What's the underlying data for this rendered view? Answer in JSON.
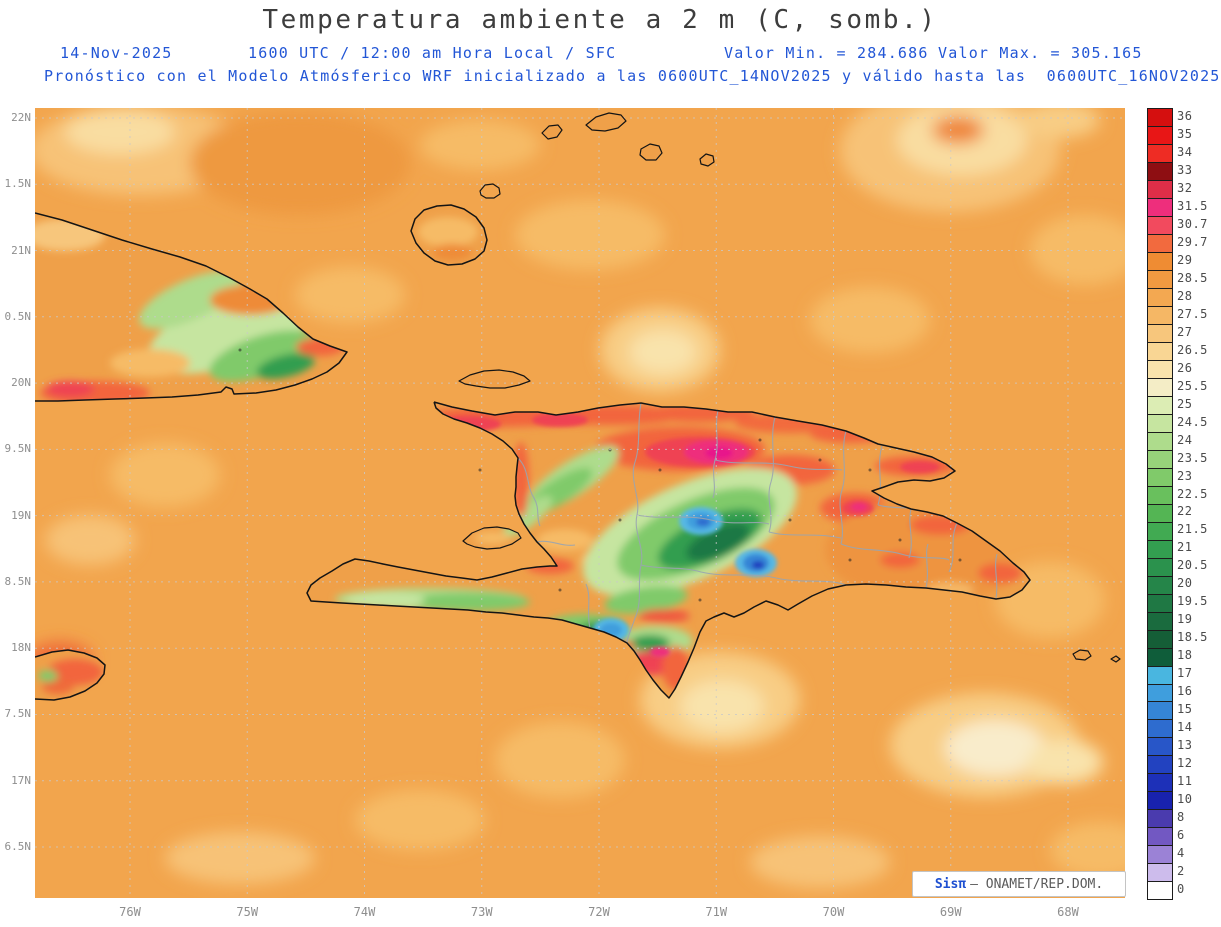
{
  "header": {
    "title": "Temperatura ambiente a 2 m (C, somb.)",
    "date": "14-Nov-2025",
    "run_info": "1600 UTC / 12:00 am Hora Local / SFC",
    "valor_min": "Valor Min. = 284.686",
    "valor_max": "Valor Max. = 305.165",
    "forecast": "Pronóstico con el Modelo Atmósferico WRF inicializado a las 0600UTC_14NOV2025 y válido hasta las  0600UTC_16NOV2025"
  },
  "axes": {
    "y_labels": [
      "22N",
      "1.5N",
      "21N",
      "0.5N",
      "20N",
      "9.5N",
      "19N",
      "8.5N",
      "18N",
      "7.5N",
      "17N",
      "6.5N"
    ],
    "x_labels": [
      "76W",
      "75W",
      "74W",
      "73W",
      "72W",
      "71W",
      "70W",
      "69W",
      "68W"
    ]
  },
  "colorbar": {
    "ticks": [
      {
        "label": "36",
        "color": "#d50f0f"
      },
      {
        "label": "35",
        "color": "#e81616"
      },
      {
        "label": "34",
        "color": "#ee2c24"
      },
      {
        "label": "33",
        "color": "#8e0e12"
      },
      {
        "label": "32",
        "color": "#de2e48"
      },
      {
        "label": "31.5",
        "color": "#ee2e7c"
      },
      {
        "label": "30.7",
        "color": "#f24a5e"
      },
      {
        "label": "29.7",
        "color": "#f26a3e"
      },
      {
        "label": "29",
        "color": "#ef8c33"
      },
      {
        "label": "28.5",
        "color": "#f19a41"
      },
      {
        "label": "28",
        "color": "#f3a851"
      },
      {
        "label": "27.5",
        "color": "#f5b765"
      },
      {
        "label": "27",
        "color": "#f7c67c"
      },
      {
        "label": "26.5",
        "color": "#f9d694"
      },
      {
        "label": "26",
        "color": "#f9e3ac"
      },
      {
        "label": "25.5",
        "color": "#f4edc6"
      },
      {
        "label": "25",
        "color": "#dcedb4"
      },
      {
        "label": "24.5",
        "color": "#c6e5a0"
      },
      {
        "label": "24",
        "color": "#aedc8c"
      },
      {
        "label": "23.5",
        "color": "#97d37a"
      },
      {
        "label": "23",
        "color": "#80ca6a"
      },
      {
        "label": "22.5",
        "color": "#69c05d"
      },
      {
        "label": "22",
        "color": "#54b554"
      },
      {
        "label": "21.5",
        "color": "#41aa52"
      },
      {
        "label": "21",
        "color": "#339e50"
      },
      {
        "label": "20.5",
        "color": "#2b924d"
      },
      {
        "label": "20",
        "color": "#258549"
      },
      {
        "label": "19.5",
        "color": "#1f7844"
      },
      {
        "label": "19",
        "color": "#1a6b3e"
      },
      {
        "label": "18.5",
        "color": "#155e37"
      },
      {
        "label": "18",
        "color": "#0f5d3a"
      },
      {
        "label": "17",
        "color": "#49b6e0"
      },
      {
        "label": "16",
        "color": "#3f9edd"
      },
      {
        "label": "15",
        "color": "#3585d6"
      },
      {
        "label": "14",
        "color": "#2e6ccf"
      },
      {
        "label": "13",
        "color": "#2856c8"
      },
      {
        "label": "12",
        "color": "#2242c0"
      },
      {
        "label": "11",
        "color": "#1d30b8"
      },
      {
        "label": "10",
        "color": "#1822ae"
      },
      {
        "label": "8",
        "color": "#4a3bae"
      },
      {
        "label": "6",
        "color": "#7258c2"
      },
      {
        "label": "4",
        "color": "#9b82d6"
      },
      {
        "label": "2",
        "color": "#cdbcec"
      },
      {
        "label": "0",
        "color": "#ffffff"
      }
    ]
  },
  "watermark": {
    "brand": "Sisπ",
    "text": "– ONAMET/REP.DOM."
  },
  "colors": {
    "accent_blue": "#2256d6",
    "axis_gray": "#8e8e8e",
    "ocean_base": "#f2a54d"
  }
}
